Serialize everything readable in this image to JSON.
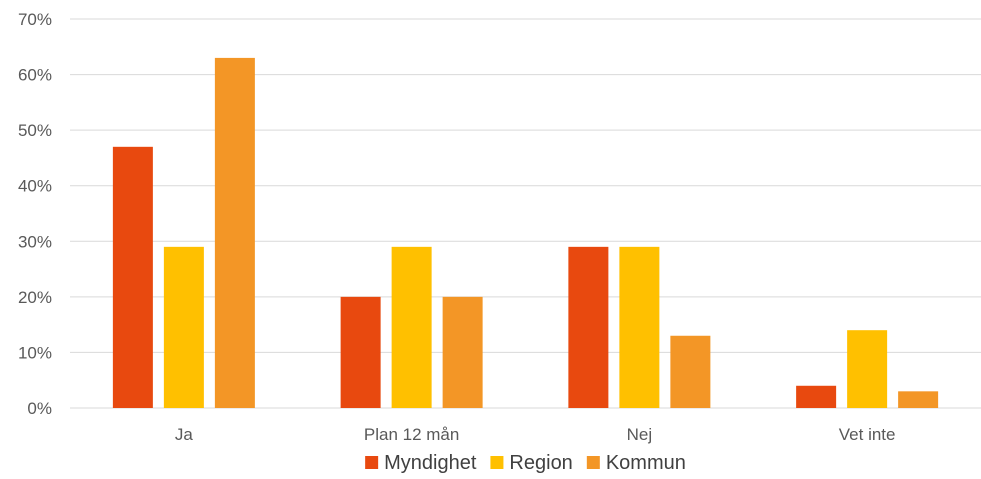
{
  "chart_data": {
    "type": "bar",
    "categories": [
      "Ja",
      "Plan 12 mån",
      "Nej",
      "Vet inte"
    ],
    "series": [
      {
        "name": "Myndighet",
        "values": [
          47,
          20,
          29,
          4
        ],
        "color": "#E8490F"
      },
      {
        "name": "Region",
        "values": [
          29,
          29,
          29,
          14
        ],
        "color": "#FFC000"
      },
      {
        "name": "Kommun",
        "values": [
          63,
          20,
          13,
          3
        ],
        "color": "#F39626"
      }
    ],
    "ylim": [
      0,
      70
    ],
    "yticks": [
      0,
      10,
      20,
      30,
      40,
      50,
      60,
      70
    ],
    "ytick_labels": [
      "0%",
      "10%",
      "20%",
      "30%",
      "40%",
      "50%",
      "60%",
      "70%"
    ],
    "grid": true,
    "gridline_color": "#D9D9D9",
    "legend_position": "bottom"
  }
}
